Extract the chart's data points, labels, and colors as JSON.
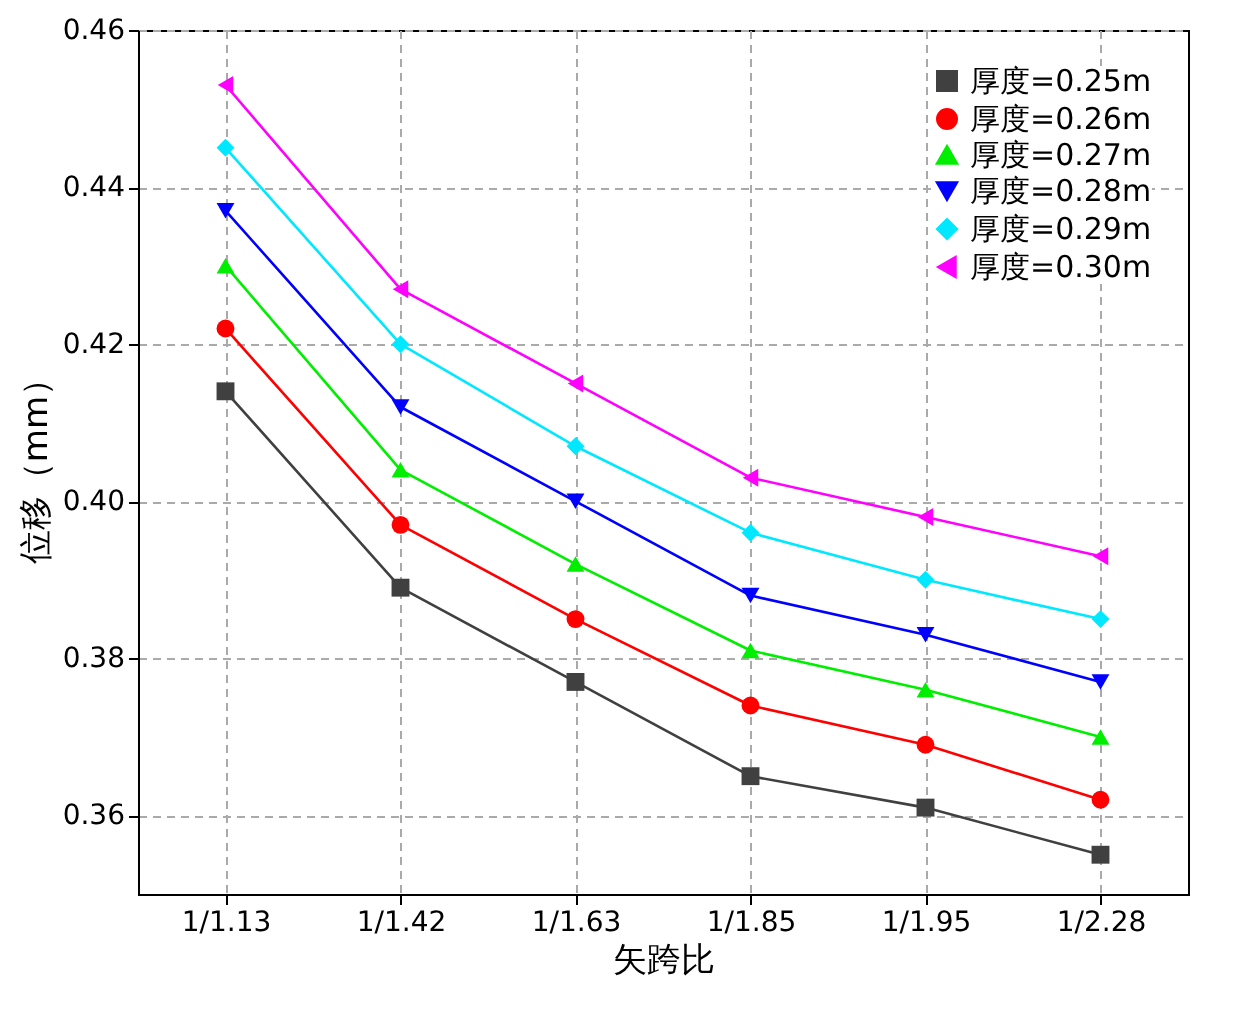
{
  "chart_data": {
    "type": "line",
    "xlabel": "矢跨比",
    "ylabel": "位移（mm）",
    "categories": [
      "1/1.13",
      "1/1.42",
      "1/1.63",
      "1/1.85",
      "1/1.95",
      "1/2.28"
    ],
    "ylim": [
      0.35,
      0.46
    ],
    "yticks": [
      0.36,
      0.38,
      {
        "value": 0.4,
        "label": "0.40"
      },
      0.42,
      0.44,
      0.46
    ],
    "grid": true,
    "legend": "top right",
    "line_style": "solid",
    "series": [
      {
        "name": "厚度=0.25m",
        "color": "#404040",
        "marker": "square",
        "values": [
          0.414,
          0.389,
          0.377,
          0.365,
          0.361,
          0.355
        ]
      },
      {
        "name": "厚度=0.26m",
        "color": "#ff0000",
        "marker": "circle",
        "values": [
          0.422,
          0.397,
          0.385,
          0.374,
          0.369,
          0.362
        ]
      },
      {
        "name": "厚度=0.27m",
        "color": "#00ee00",
        "marker": "triangle-up",
        "values": [
          0.43,
          0.404,
          0.392,
          0.381,
          0.376,
          0.37
        ]
      },
      {
        "name": "厚度=0.28m",
        "color": "#0000ff",
        "marker": "triangle-down",
        "values": [
          0.437,
          0.412,
          0.4,
          0.388,
          0.383,
          0.377
        ]
      },
      {
        "name": "厚度=0.29m",
        "color": "#00e8ff",
        "marker": "diamond",
        "values": [
          0.445,
          0.42,
          0.407,
          0.396,
          0.39,
          0.385
        ]
      },
      {
        "name": "厚度=0.30m",
        "color": "#ff00ff",
        "marker": "triangle-left",
        "values": [
          0.453,
          0.427,
          0.415,
          0.403,
          0.398,
          0.393
        ]
      }
    ]
  }
}
